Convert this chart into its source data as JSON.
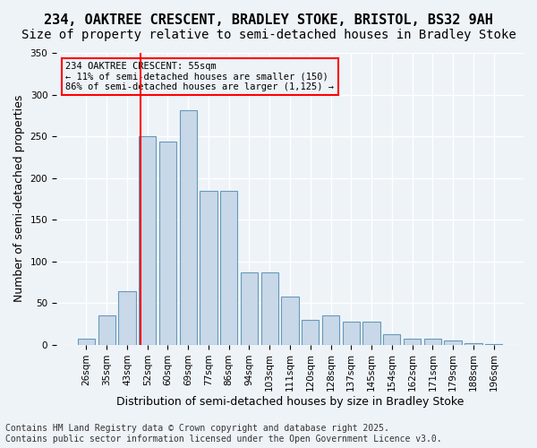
{
  "title_line1": "234, OAKTREE CRESCENT, BRADLEY STOKE, BRISTOL, BS32 9AH",
  "title_line2": "Size of property relative to semi-detached houses in Bradley Stoke",
  "xlabel": "Distribution of semi-detached houses by size in Bradley Stoke",
  "ylabel": "Number of semi-detached properties",
  "bar_labels": [
    "26sqm",
    "35sqm",
    "43sqm",
    "52sqm",
    "60sqm",
    "69sqm",
    "77sqm",
    "86sqm",
    "94sqm",
    "103sqm",
    "111sqm",
    "120sqm",
    "128sqm",
    "137sqm",
    "145sqm",
    "154sqm",
    "162sqm",
    "171sqm",
    "179sqm",
    "188sqm",
    "196sqm"
  ],
  "bar_values": [
    7,
    35,
    64,
    250,
    244,
    281,
    184,
    184,
    87,
    87,
    58,
    30,
    35,
    27,
    27,
    13,
    7,
    7,
    5,
    2,
    1
  ],
  "bar_color": "#c8d8e8",
  "bar_edge_color": "#6699bb",
  "vline_x": 3.5,
  "vline_color": "red",
  "annotation_title": "234 OAKTREE CRESCENT: 55sqm",
  "annotation_line1": "← 11% of semi-detached houses are smaller (150)",
  "annotation_line2": "86% of semi-detached houses are larger (1,125) →",
  "annotation_box_color": "red",
  "ylim": [
    0,
    350
  ],
  "yticks": [
    0,
    50,
    100,
    150,
    200,
    250,
    300,
    350
  ],
  "footnote_line1": "Contains HM Land Registry data © Crown copyright and database right 2025.",
  "footnote_line2": "Contains public sector information licensed under the Open Government Licence v3.0.",
  "bg_color": "#eef3f8",
  "grid_color": "#ffffff",
  "title_fontsize": 11,
  "subtitle_fontsize": 10,
  "axis_label_fontsize": 9,
  "tick_fontsize": 7.5,
  "footnote_fontsize": 7
}
